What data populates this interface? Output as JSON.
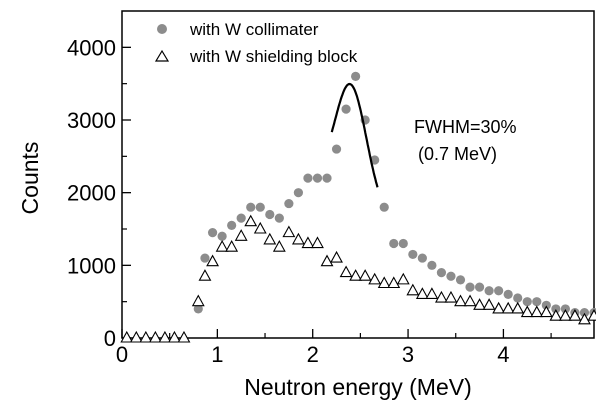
{
  "chart_data": {
    "type": "scatter",
    "xlabel": "Neutron energy (MeV)",
    "ylabel": "Counts",
    "xlim": [
      0,
      4.95
    ],
    "ylim": [
      0,
      4500
    ],
    "xticks": [
      0,
      1,
      2,
      3,
      4
    ],
    "yticks": [
      0,
      1000,
      2000,
      3000,
      4000
    ],
    "xtick_labels": [
      "0",
      "1",
      "2",
      "3",
      "4"
    ],
    "ytick_labels": [
      "0",
      "1000",
      "2000",
      "3000",
      "4000"
    ],
    "legend_position": "top-left",
    "grid": false,
    "series": [
      {
        "name": "with W collimater",
        "marker": "filled-circle",
        "color": "#8c8c8c",
        "x": [
          0.8,
          0.87,
          0.95,
          1.05,
          1.15,
          1.25,
          1.35,
          1.45,
          1.55,
          1.65,
          1.75,
          1.85,
          1.95,
          2.05,
          2.15,
          2.25,
          2.35,
          2.45,
          2.55,
          2.65,
          2.75,
          2.85,
          2.95,
          3.05,
          3.15,
          3.25,
          3.35,
          3.45,
          3.55,
          3.65,
          3.75,
          3.85,
          3.95,
          4.05,
          4.15,
          4.25,
          4.35,
          4.45,
          4.55,
          4.65,
          4.75,
          4.85,
          4.95
        ],
        "y": [
          400,
          1100,
          1450,
          1400,
          1550,
          1650,
          1800,
          1800,
          1700,
          1650,
          1850,
          2000,
          2200,
          2200,
          2200,
          2600,
          3150,
          3600,
          3000,
          2450,
          1800,
          1300,
          1300,
          1150,
          1100,
          1000,
          900,
          850,
          800,
          700,
          700,
          650,
          650,
          600,
          550,
          500,
          500,
          450,
          400,
          400,
          350,
          350,
          350
        ]
      },
      {
        "name": "with W shielding block",
        "marker": "open-triangle",
        "color": "#000000",
        "x": [
          0.05,
          0.15,
          0.25,
          0.35,
          0.45,
          0.55,
          0.65,
          0.8,
          0.87,
          0.95,
          1.05,
          1.15,
          1.25,
          1.35,
          1.45,
          1.55,
          1.65,
          1.75,
          1.85,
          1.95,
          2.05,
          2.15,
          2.25,
          2.35,
          2.45,
          2.55,
          2.65,
          2.75,
          2.85,
          2.95,
          3.05,
          3.15,
          3.25,
          3.35,
          3.45,
          3.55,
          3.65,
          3.75,
          3.85,
          3.95,
          4.05,
          4.15,
          4.25,
          4.35,
          4.45,
          4.55,
          4.65,
          4.75,
          4.85,
          4.95
        ],
        "y": [
          0,
          0,
          0,
          0,
          0,
          0,
          0,
          500,
          850,
          1050,
          1250,
          1250,
          1400,
          1600,
          1500,
          1350,
          1250,
          1450,
          1350,
          1300,
          1300,
          1050,
          1100,
          900,
          850,
          850,
          800,
          750,
          750,
          800,
          650,
          600,
          600,
          550,
          550,
          500,
          500,
          450,
          450,
          400,
          400,
          400,
          350,
          350,
          350,
          300,
          300,
          300,
          250,
          300
        ]
      }
    ],
    "fit_curve": {
      "type": "gaussian",
      "peak_center": 2.4,
      "peak_height": 3600,
      "fwhm": 0.7,
      "x_range": [
        2.2,
        2.68
      ]
    },
    "annotations": [
      "FWHM=30%",
      "(0.7 MeV)"
    ]
  }
}
